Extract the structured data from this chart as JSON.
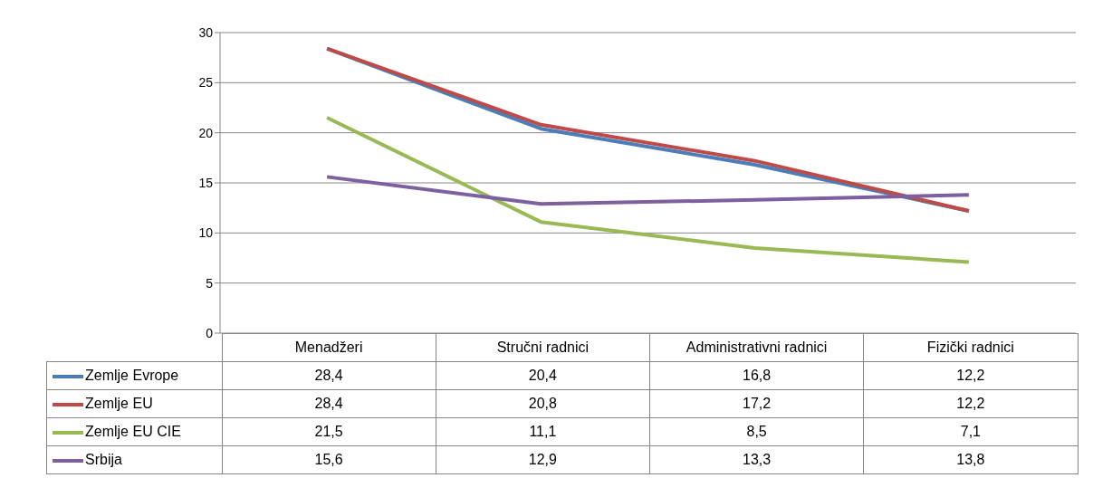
{
  "chart_data": {
    "type": "line",
    "categories": [
      "Menadžeri",
      "Stručni radnici",
      "Administrativni radnici",
      "Fizički radnici"
    ],
    "series": [
      {
        "name": "Zemlje Evrope",
        "color": "#4a7ebb",
        "values": [
          28.4,
          20.4,
          16.8,
          12.2
        ],
        "value_labels": [
          "28,4",
          "20,4",
          "16,8",
          "12,2"
        ]
      },
      {
        "name": "Zemlje EU",
        "color": "#be4b48",
        "values": [
          28.4,
          20.8,
          17.2,
          12.2
        ],
        "value_labels": [
          "28,4",
          "20,8",
          "17,2",
          "12,2"
        ]
      },
      {
        "name": "Zemlje EU CIE",
        "color": "#98b954",
        "values": [
          21.5,
          11.1,
          8.5,
          7.1
        ],
        "value_labels": [
          "21,5",
          "11,1",
          "8,5",
          "7,1"
        ]
      },
      {
        "name": "Srbija",
        "color": "#7d60a0",
        "values": [
          15.6,
          12.9,
          13.3,
          13.8
        ],
        "value_labels": [
          "15,6",
          "12,9",
          "13,3",
          "13,8"
        ]
      }
    ],
    "ylim": [
      0,
      30
    ],
    "yticks": [
      0,
      5,
      10,
      15,
      20,
      25,
      30
    ],
    "grid": "y",
    "legend": "left",
    "marker": "none",
    "line_style": "solid"
  }
}
